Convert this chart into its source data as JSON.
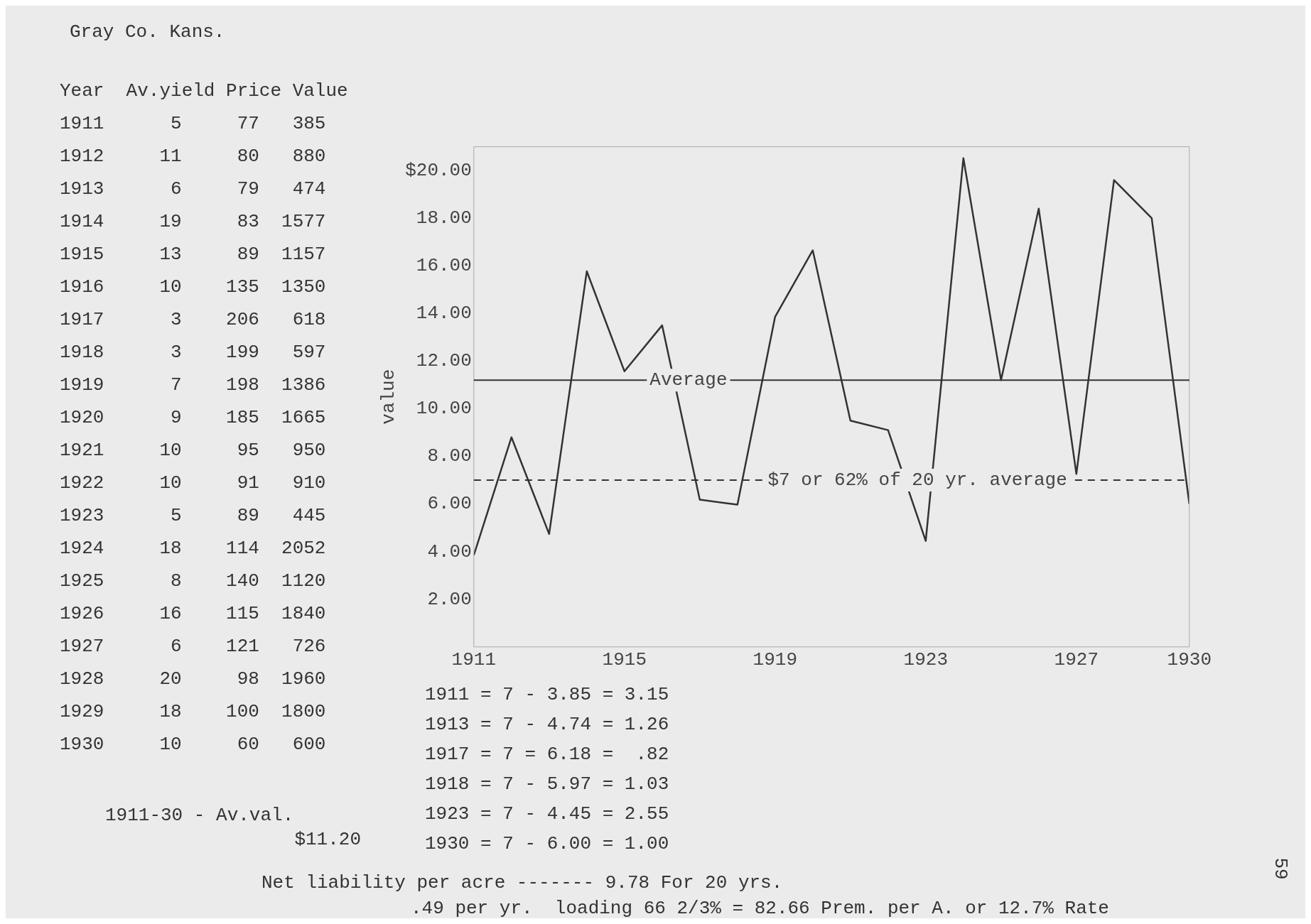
{
  "chart_data": {
    "type": "line",
    "title": "Gray Co. Kans.",
    "ylabel": "value",
    "x": [
      1911,
      1912,
      1913,
      1914,
      1915,
      1916,
      1917,
      1918,
      1919,
      1920,
      1921,
      1922,
      1923,
      1924,
      1925,
      1926,
      1927,
      1928,
      1929,
      1930
    ],
    "values": [
      3.85,
      8.8,
      4.74,
      15.77,
      11.57,
      13.5,
      6.18,
      5.97,
      13.86,
      16.65,
      9.5,
      9.1,
      4.45,
      20.52,
      11.2,
      18.4,
      7.26,
      19.6,
      18.0,
      6.0
    ],
    "color": "#333333",
    "marker": "none",
    "line_style": "solid",
    "grid": false,
    "legend": false,
    "xlim": [
      1911,
      1930
    ],
    "xticks": [
      1911,
      1915,
      1919,
      1923,
      1927,
      1930
    ],
    "ylim": [
      0,
      21
    ],
    "yticks": [
      {
        "value": 2,
        "label": "2.00"
      },
      {
        "value": 4,
        "label": "4.00"
      },
      {
        "value": 6,
        "label": "6.00"
      },
      {
        "value": 8,
        "label": "8.00"
      },
      {
        "value": 10,
        "label": "10.00"
      },
      {
        "value": 12,
        "label": "12.00"
      },
      {
        "value": 14,
        "label": "14.00"
      },
      {
        "value": 16,
        "label": "16.00"
      },
      {
        "value": 18,
        "label": "18.00"
      },
      {
        "value": 20,
        "label": "$20.00"
      }
    ],
    "ref_lines": [
      {
        "axis": "y",
        "value": 11.2,
        "label": "Average",
        "line_style": "solid",
        "color": "#333333"
      },
      {
        "axis": "y",
        "value": 7,
        "label": "$7 or 62% of 20 yr. average",
        "line_style": "dashed",
        "color": "#333333"
      }
    ],
    "annotations": [
      "Year  Av.yield Price Value",
      "1911      5     77   385",
      "1912     11     80   880",
      "1913      6     79   474",
      "1914     19     83  1577",
      "1915     13     89  1157",
      "1916     10    135  1350",
      "1917      3    206   618",
      "1918      3    199   597",
      "1919      7    198  1386",
      "1920      9    185  1665",
      "1921     10     95   950",
      "1922     10     91   910",
      "1923      5     89   445",
      "1924     18    114  2052",
      "1925      8    140  1120",
      "1926     16    115  1840",
      "1927      6    121   726",
      "1928     20     98  1960",
      "1929     18    100  1800",
      "1930     10     60   600",
      "1911-30 - Av.val.",
      "$11.20",
      "1911 = 7 - 3.85 = 3.15",
      "1913 = 7 - 4.74 = 1.26",
      "1917 = 7 = 6.18 =  .82",
      "1918 = 7 - 5.97 = 1.03",
      "1923 = 7 - 4.45 = 2.55",
      "1930 = 7 - 6.00 = 1.00",
      "Net liability per acre ------- 9.78 For 20 yrs.",
      ".49 per yr.  loading 66 2/3% = 82.66 Prem. per A. or 12.7% Rate",
      "59"
    ]
  }
}
